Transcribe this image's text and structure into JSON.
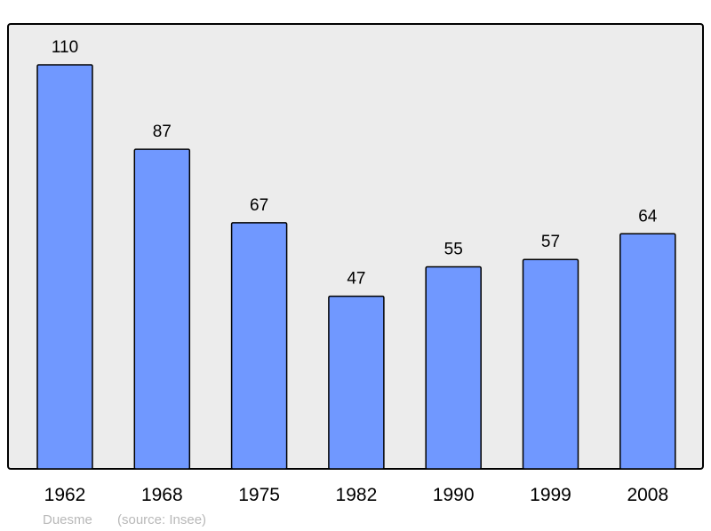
{
  "chart_data": {
    "type": "bar",
    "categories": [
      "1962",
      "1968",
      "1975",
      "1982",
      "1990",
      "1999",
      "2008"
    ],
    "values": [
      110,
      87,
      67,
      47,
      55,
      57,
      64
    ],
    "data_labels": [
      "110",
      "87",
      "67",
      "47",
      "55",
      "57",
      "64"
    ],
    "ylim": [
      0,
      110
    ],
    "grid": false,
    "bar_color": "#7098ff",
    "plot_background": "#ececec",
    "title": "",
    "xlabel": "",
    "ylabel": ""
  },
  "footer": {
    "place": "Duesme",
    "source": "(source: Insee)"
  }
}
